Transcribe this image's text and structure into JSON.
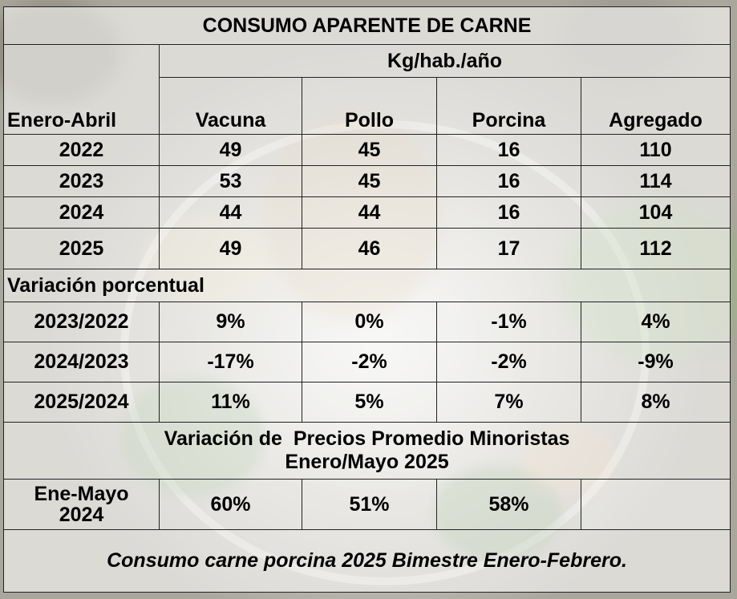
{
  "title": "CONSUMO APARENTE DE CARNE",
  "unit": "Kg/hab./año",
  "headers": {
    "period": "Enero-Abril",
    "columns": [
      "Vacuna",
      "Pollo",
      "Porcina",
      "Agregado"
    ]
  },
  "consumption": [
    {
      "year": "2022",
      "values": [
        "49",
        "45",
        "16",
        "110"
      ]
    },
    {
      "year": "2023",
      "values": [
        "53",
        "45",
        "16",
        "114"
      ]
    },
    {
      "year": "2024",
      "values": [
        "44",
        "44",
        "16",
        "104"
      ]
    },
    {
      "year": "2025",
      "values": [
        "49",
        "46",
        "17",
        "112"
      ]
    }
  ],
  "variation_title": "Variación porcentual",
  "variations": [
    {
      "period": "2023/2022",
      "values": [
        "9%",
        "0%",
        "-1%",
        "4%"
      ]
    },
    {
      "period": "2024/2023",
      "values": [
        "-17%",
        "-2%",
        "-2%",
        "-9%"
      ]
    },
    {
      "period": "2025/2024",
      "values": [
        "11%",
        "5%",
        "7%",
        "8%"
      ]
    }
  ],
  "prices": {
    "title_line1": "Variación de  Precios Promedio Minoristas",
    "title_line2": "Enero/Mayo 2025",
    "label_line1": "Ene-Mayo",
    "label_line2": "2024",
    "values": [
      "60%",
      "51%",
      "58%",
      ""
    ]
  },
  "footnote": "Consumo carne porcina 2025 Bimestre Enero-Febrero."
}
